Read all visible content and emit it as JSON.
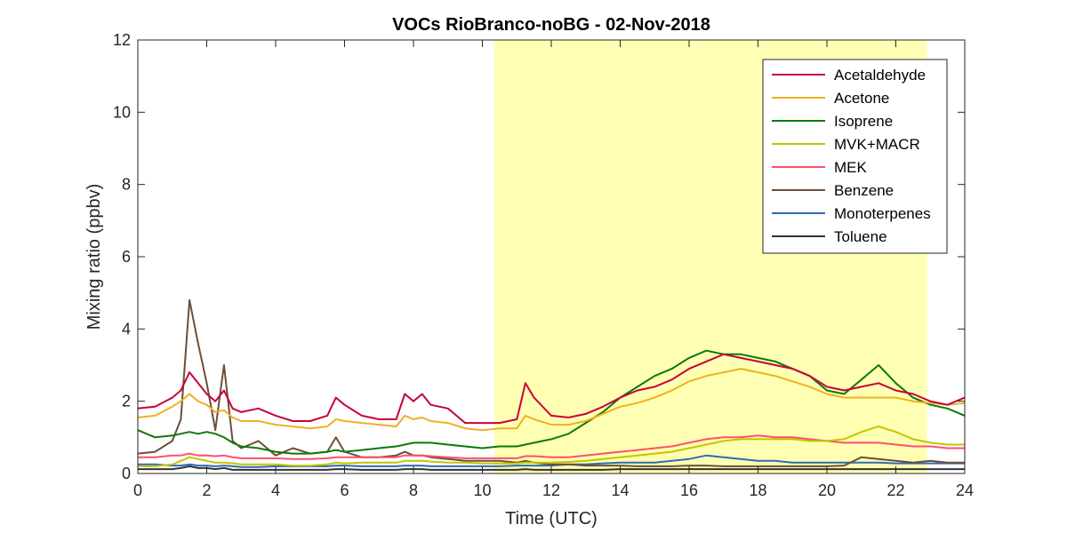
{
  "chart_data": {
    "type": "line",
    "title": "VOCs RioBranco-noBG - 02-Nov-2018",
    "xlabel": "Time (UTC)",
    "ylabel": "Mixing ratio (ppbv)",
    "xlim": [
      0,
      24
    ],
    "ylim": [
      0,
      12
    ],
    "xticks": [
      0,
      2,
      4,
      6,
      8,
      10,
      12,
      14,
      16,
      18,
      20,
      22,
      24
    ],
    "yticks": [
      0,
      2,
      4,
      6,
      8,
      10,
      12
    ],
    "grid": false,
    "legend_position": "top-right",
    "daytime_shading": {
      "x_start": 10.35,
      "x_end": 22.9,
      "color": "#FFFFB3"
    },
    "x": [
      0,
      0.5,
      1,
      1.25,
      1.5,
      1.75,
      2,
      2.25,
      2.5,
      2.75,
      3,
      3.5,
      4,
      4.5,
      5,
      5.5,
      5.75,
      6,
      6.5,
      7,
      7.5,
      7.75,
      8,
      8.25,
      8.5,
      9,
      9.5,
      10,
      10.5,
      11,
      11.25,
      11.5,
      12,
      12.5,
      13,
      13.5,
      14,
      14.5,
      15,
      15.5,
      16,
      16.5,
      17,
      17.5,
      18,
      18.5,
      19,
      19.5,
      20,
      20.5,
      21,
      21.5,
      22,
      22.5,
      23,
      23.5,
      24
    ],
    "series": [
      {
        "name": "Acetaldehyde",
        "color": "#C8003C",
        "values": [
          1.8,
          1.85,
          2.1,
          2.3,
          2.8,
          2.5,
          2.2,
          2.0,
          2.3,
          1.8,
          1.7,
          1.8,
          1.6,
          1.45,
          1.45,
          1.6,
          2.1,
          1.9,
          1.6,
          1.5,
          1.5,
          2.2,
          2.0,
          2.2,
          1.9,
          1.8,
          1.4,
          1.4,
          1.4,
          1.5,
          2.5,
          2.1,
          1.6,
          1.55,
          1.65,
          1.85,
          2.1,
          2.3,
          2.4,
          2.6,
          2.9,
          3.1,
          3.3,
          3.2,
          3.1,
          3.0,
          2.9,
          2.7,
          2.4,
          2.3,
          2.4,
          2.5,
          2.3,
          2.2,
          2.0,
          1.9,
          2.1
        ]
      },
      {
        "name": "Acetone",
        "color": "#EDB120",
        "values": [
          1.55,
          1.6,
          1.85,
          2.0,
          2.2,
          2.0,
          1.9,
          1.7,
          1.75,
          1.55,
          1.45,
          1.45,
          1.35,
          1.3,
          1.25,
          1.3,
          1.5,
          1.45,
          1.4,
          1.35,
          1.3,
          1.6,
          1.5,
          1.55,
          1.45,
          1.4,
          1.25,
          1.2,
          1.25,
          1.25,
          1.6,
          1.5,
          1.35,
          1.35,
          1.45,
          1.65,
          1.85,
          1.95,
          2.1,
          2.3,
          2.55,
          2.7,
          2.8,
          2.9,
          2.8,
          2.7,
          2.55,
          2.4,
          2.2,
          2.1,
          2.1,
          2.1,
          2.1,
          2.0,
          1.95,
          1.9,
          1.95
        ]
      },
      {
        "name": "Isoprene",
        "color": "#0B7A0B",
        "values": [
          1.2,
          1.0,
          1.05,
          1.1,
          1.15,
          1.1,
          1.15,
          1.1,
          1.0,
          0.85,
          0.75,
          0.7,
          0.6,
          0.55,
          0.55,
          0.6,
          0.65,
          0.6,
          0.65,
          0.7,
          0.75,
          0.8,
          0.85,
          0.85,
          0.85,
          0.8,
          0.75,
          0.7,
          0.75,
          0.75,
          0.8,
          0.85,
          0.95,
          1.1,
          1.4,
          1.7,
          2.1,
          2.4,
          2.7,
          2.9,
          3.2,
          3.4,
          3.3,
          3.3,
          3.2,
          3.1,
          2.9,
          2.7,
          2.3,
          2.2,
          2.6,
          3.0,
          2.5,
          2.1,
          1.9,
          1.8,
          1.6
        ]
      },
      {
        "name": "MVK+MACR",
        "color": "#C4C400",
        "values": [
          0.2,
          0.2,
          0.25,
          0.35,
          0.45,
          0.4,
          0.35,
          0.3,
          0.3,
          0.28,
          0.25,
          0.25,
          0.25,
          0.22,
          0.22,
          0.25,
          0.3,
          0.28,
          0.3,
          0.3,
          0.3,
          0.35,
          0.35,
          0.35,
          0.33,
          0.3,
          0.3,
          0.28,
          0.28,
          0.28,
          0.3,
          0.3,
          0.3,
          0.32,
          0.35,
          0.4,
          0.45,
          0.5,
          0.55,
          0.6,
          0.7,
          0.8,
          0.9,
          0.95,
          0.95,
          0.95,
          0.95,
          0.9,
          0.9,
          0.95,
          1.15,
          1.3,
          1.15,
          0.95,
          0.85,
          0.8,
          0.8
        ]
      },
      {
        "name": "MEK",
        "color": "#FF4F6E",
        "values": [
          0.45,
          0.45,
          0.5,
          0.5,
          0.55,
          0.5,
          0.5,
          0.48,
          0.5,
          0.45,
          0.42,
          0.42,
          0.42,
          0.4,
          0.4,
          0.42,
          0.45,
          0.45,
          0.45,
          0.45,
          0.45,
          0.5,
          0.5,
          0.5,
          0.48,
          0.45,
          0.42,
          0.42,
          0.42,
          0.42,
          0.48,
          0.48,
          0.45,
          0.45,
          0.5,
          0.55,
          0.6,
          0.65,
          0.7,
          0.75,
          0.85,
          0.95,
          1.0,
          1.0,
          1.05,
          1.0,
          1.0,
          0.95,
          0.9,
          0.85,
          0.85,
          0.85,
          0.8,
          0.75,
          0.75,
          0.7,
          0.7
        ]
      },
      {
        "name": "Benzene",
        "color": "#6B4F3A",
        "values": [
          0.55,
          0.6,
          0.9,
          1.5,
          4.8,
          3.6,
          2.5,
          1.2,
          3.0,
          0.9,
          0.7,
          0.9,
          0.5,
          0.7,
          0.55,
          0.6,
          1.0,
          0.6,
          0.45,
          0.45,
          0.5,
          0.6,
          0.5,
          0.5,
          0.45,
          0.4,
          0.35,
          0.35,
          0.35,
          0.3,
          0.35,
          0.3,
          0.25,
          0.25,
          0.22,
          0.22,
          0.22,
          0.2,
          0.2,
          0.2,
          0.22,
          0.22,
          0.2,
          0.2,
          0.2,
          0.2,
          0.2,
          0.2,
          0.2,
          0.22,
          0.45,
          0.4,
          0.35,
          0.3,
          0.35,
          0.3,
          0.3
        ]
      },
      {
        "name": "Monoterpenes",
        "color": "#2E6BB5",
        "values": [
          0.25,
          0.25,
          0.22,
          0.22,
          0.25,
          0.22,
          0.22,
          0.2,
          0.22,
          0.2,
          0.18,
          0.18,
          0.2,
          0.2,
          0.2,
          0.2,
          0.22,
          0.22,
          0.2,
          0.2,
          0.2,
          0.22,
          0.22,
          0.22,
          0.2,
          0.2,
          0.2,
          0.2,
          0.2,
          0.22,
          0.22,
          0.22,
          0.22,
          0.25,
          0.25,
          0.28,
          0.3,
          0.3,
          0.3,
          0.35,
          0.4,
          0.5,
          0.45,
          0.4,
          0.35,
          0.35,
          0.3,
          0.3,
          0.3,
          0.3,
          0.3,
          0.3,
          0.28,
          0.28,
          0.28,
          0.28,
          0.28
        ]
      },
      {
        "name": "Toluene",
        "color": "#333333",
        "values": [
          0.12,
          0.12,
          0.12,
          0.15,
          0.2,
          0.15,
          0.15,
          0.12,
          0.15,
          0.1,
          0.1,
          0.1,
          0.1,
          0.1,
          0.1,
          0.1,
          0.12,
          0.12,
          0.1,
          0.1,
          0.1,
          0.12,
          0.12,
          0.12,
          0.1,
          0.1,
          0.1,
          0.1,
          0.1,
          0.1,
          0.12,
          0.1,
          0.1,
          0.1,
          0.1,
          0.1,
          0.12,
          0.12,
          0.12,
          0.12,
          0.12,
          0.12,
          0.12,
          0.12,
          0.12,
          0.12,
          0.12,
          0.12,
          0.12,
          0.12,
          0.12,
          0.12,
          0.12,
          0.12,
          0.12,
          0.12,
          0.12
        ]
      }
    ]
  }
}
